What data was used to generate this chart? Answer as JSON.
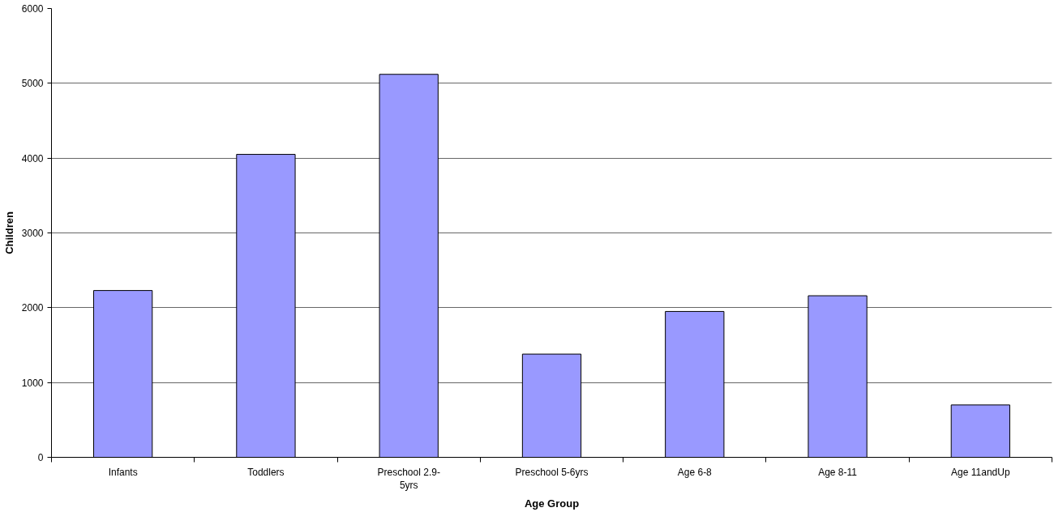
{
  "chart_data": {
    "type": "bar",
    "xlabel": "Age Group",
    "ylabel": "Children",
    "categories": [
      "Infants",
      "Toddlers",
      "Preschool 2.9-5yrs",
      "Preschool 5-6yrs",
      "Age 6-8",
      "Age 8-11",
      "Age 11andUp"
    ],
    "values": [
      2230,
      4050,
      5120,
      1380,
      1950,
      2160,
      700
    ],
    "color": "#9999ff",
    "ylim": [
      0,
      6000
    ],
    "yticks": [
      0,
      1000,
      2000,
      3000,
      4000,
      5000,
      6000
    ],
    "grid": "y"
  }
}
